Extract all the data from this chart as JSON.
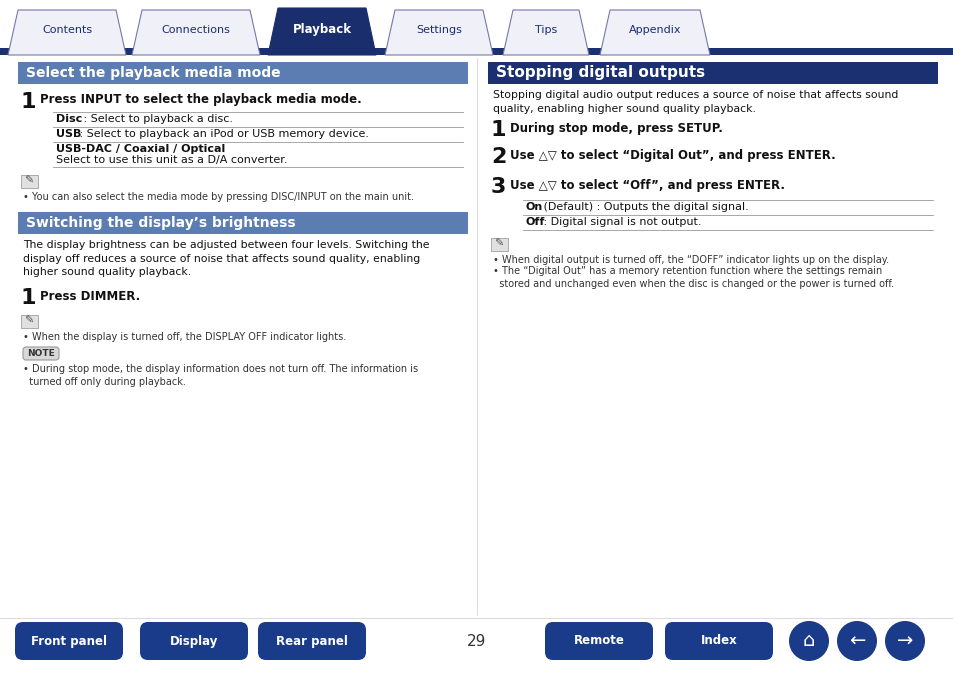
{
  "page_bg": "#ffffff",
  "tabs": [
    {
      "label": "Contents",
      "active": false
    },
    {
      "label": "Connections",
      "active": false
    },
    {
      "label": "Playback",
      "active": true
    },
    {
      "label": "Settings",
      "active": false
    },
    {
      "label": "Tips",
      "active": false
    },
    {
      "label": "Appendix",
      "active": false
    }
  ],
  "tab_active_bg": "#1a2e6e",
  "tab_inactive_bg": "#f0f0f8",
  "tab_border_color": "#7777aa",
  "tab_active_text": "#ffffff",
  "tab_inactive_text": "#1a2e6e",
  "section1_title": "Select the playback media mode",
  "section2_title": "Switching the display’s brightness",
  "section3_title": "Stopping digital outputs",
  "header_blue": "#5b7db1",
  "header_dark": "#1a3070",
  "divider_line": "#1a3070",
  "bottom_btn_color": "#1a3a8a",
  "page_number": "29",
  "text_dark": "#111111",
  "text_gray": "#333333",
  "line_color": "#999999"
}
